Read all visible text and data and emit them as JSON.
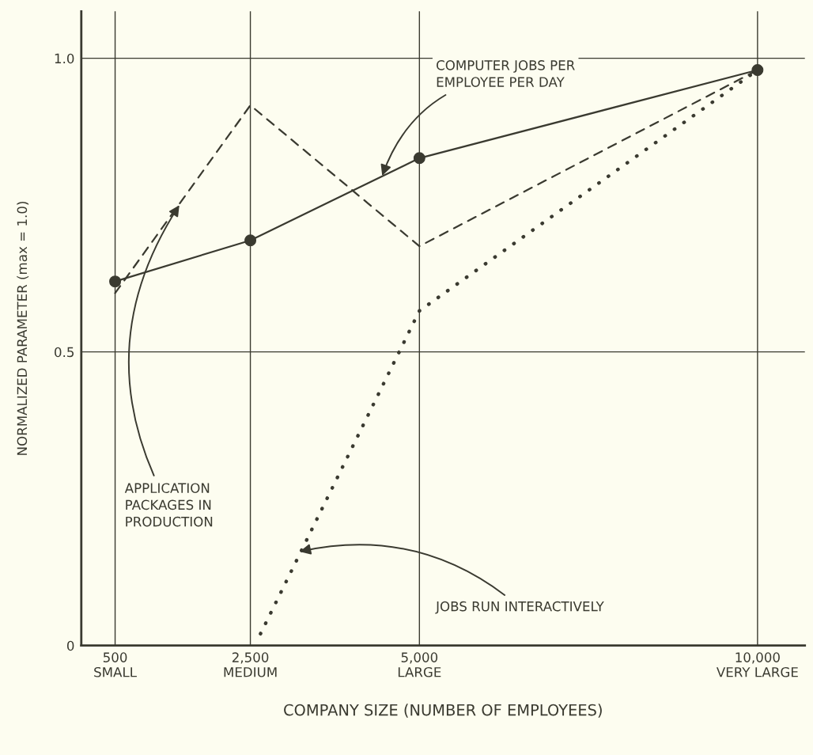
{
  "chart_data": {
    "type": "line",
    "xlabel": "COMPANY SIZE (NUMBER OF EMPLOYEES)",
    "ylabel": "NORMALIZED PARAMETER (max = 1.0)",
    "xlim": [
      0,
      10700
    ],
    "xticks": [
      {
        "value": 500,
        "label": "500\nSMALL"
      },
      {
        "value": 2500,
        "label": "2,500\nMEDIUM"
      },
      {
        "value": 5000,
        "label": "5,000\nLARGE"
      },
      {
        "value": 10000,
        "label": "10,000\nVERY LARGE"
      }
    ],
    "ylim": [
      0,
      1.08
    ],
    "yticks": [
      0,
      0.5,
      {
        "value": 1,
        "label": "1.0"
      }
    ],
    "grid": true,
    "series": [
      {
        "color": "#3a3a30",
        "x": [
          500,
          2500,
          5000,
          10000
        ],
        "values": [
          0.62,
          0.69,
          0.83,
          0.98
        ],
        "line_style": "solid",
        "marker": "circle"
      },
      {
        "color": "#3a3a30",
        "x": [
          500,
          2500,
          5000,
          10000
        ],
        "values": [
          0.6,
          0.92,
          0.68,
          0.98
        ],
        "line_style": "dashed",
        "marker": "none"
      },
      {
        "color": "#3a3a30",
        "x": [
          2650,
          5000,
          10000
        ],
        "values": [
          0.02,
          0.57,
          0.98
        ],
        "line_style": "dotted",
        "marker": "none"
      }
    ],
    "annotations": [
      {
        "text": "COMPUTER JOBS PER\nEMPLOYEE PER DAY",
        "x": 4450,
        "y": 0.8
      },
      {
        "text": "APPLICATION\nPACKAGES IN\nPRODUCTION",
        "x": 1450,
        "y": 0.75
      },
      {
        "text": "JOBS RUN INTERACTIVELY",
        "x": 3230,
        "y": 0.16
      }
    ]
  }
}
